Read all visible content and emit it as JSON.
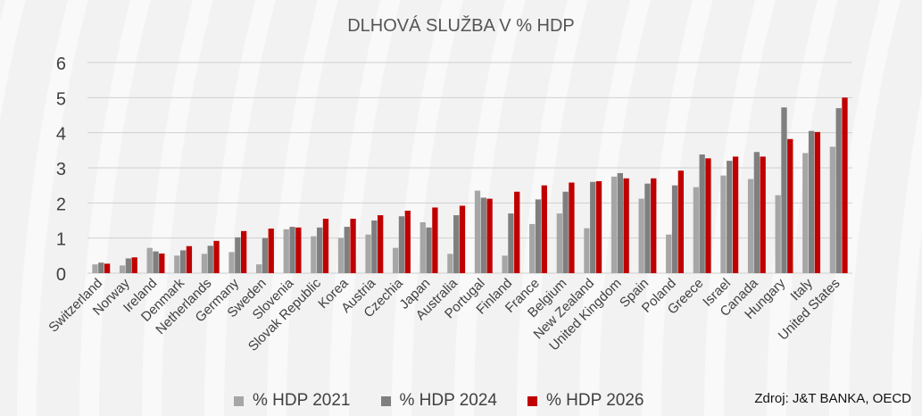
{
  "chart_data": {
    "type": "bar",
    "title": "DLHOVÁ SLUŽBA V % HDP",
    "xlabel": "",
    "ylabel": "",
    "ylim": [
      0,
      6
    ],
    "yticks": [
      0,
      1,
      2,
      3,
      4,
      5,
      6
    ],
    "grid": true,
    "legend_position": "bottom",
    "categories": [
      "Switzerland",
      "Norway",
      "Ireland",
      "Denmark",
      "Netherlands",
      "Germany",
      "Sweden",
      "Slovenia",
      "Slovak Republic",
      "Korea",
      "Austria",
      "Czechia",
      "Japan",
      "Australia",
      "Portugal",
      "Finland",
      "France",
      "Belgium",
      "New Zealand",
      "United Kingdom",
      "Spain",
      "Poland",
      "Greece",
      "Israel",
      "Canada",
      "Hungary",
      "Italy",
      "United States"
    ],
    "series": [
      {
        "name": "%  HDP 2021",
        "color": "#a6a6a6",
        "values": [
          0.25,
          0.22,
          0.72,
          0.5,
          0.55,
          0.6,
          0.25,
          1.25,
          1.05,
          1.0,
          1.1,
          0.72,
          1.45,
          0.55,
          2.35,
          0.5,
          1.4,
          1.7,
          1.28,
          2.75,
          2.12,
          1.1,
          2.45,
          2.78,
          2.68,
          2.22,
          3.42,
          3.6
        ]
      },
      {
        "name": "%  HDP 2024",
        "color": "#7f7f7f",
        "values": [
          0.3,
          0.42,
          0.62,
          0.65,
          0.78,
          1.02,
          1.0,
          1.32,
          1.3,
          1.32,
          1.5,
          1.62,
          1.3,
          1.65,
          2.15,
          1.7,
          2.1,
          2.32,
          2.6,
          2.85,
          2.55,
          2.5,
          3.38,
          3.2,
          3.45,
          4.72,
          4.05,
          4.7
        ]
      },
      {
        "name": "%  HDP 2026",
        "color": "#c00000",
        "values": [
          0.27,
          0.45,
          0.56,
          0.77,
          0.92,
          1.2,
          1.27,
          1.3,
          1.55,
          1.55,
          1.65,
          1.78,
          1.87,
          1.92,
          2.12,
          2.32,
          2.5,
          2.58,
          2.62,
          2.7,
          2.7,
          2.92,
          3.27,
          3.32,
          3.32,
          3.82,
          4.02,
          5.0
        ]
      }
    ]
  },
  "source_text": "Zdroj: J&T BANKA, OECD"
}
